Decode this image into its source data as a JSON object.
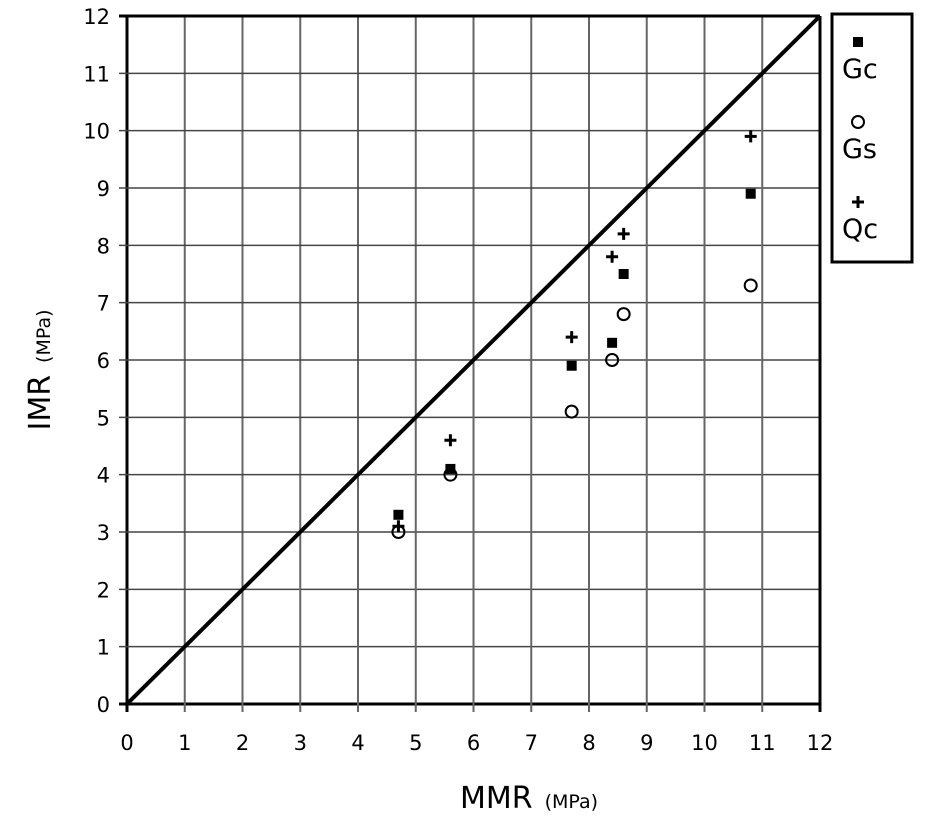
{
  "chart_data": {
    "type": "scatter",
    "xlabel": "MMR",
    "xlabel_unit": "(MPa)",
    "ylabel": "IMR",
    "ylabel_unit": "(MPa)",
    "xlim": [
      0,
      12
    ],
    "ylim": [
      0,
      12
    ],
    "xticks": [
      "0",
      "1",
      "2",
      "3",
      "4",
      "5",
      "6",
      "7",
      "8",
      "9",
      "10",
      "11",
      "12"
    ],
    "yticks": [
      "0",
      "1",
      "2",
      "3",
      "4",
      "5",
      "6",
      "7",
      "8",
      "9",
      "10",
      "11",
      "12"
    ],
    "grid": true,
    "legend_position": "right",
    "reference_line": "y = x",
    "series": [
      {
        "name": "Gc",
        "marker": "filled-square",
        "points": [
          [
            4.7,
            3.3
          ],
          [
            5.6,
            4.1
          ],
          [
            7.7,
            5.9
          ],
          [
            8.4,
            6.3
          ],
          [
            8.6,
            7.5
          ],
          [
            10.8,
            8.9
          ]
        ]
      },
      {
        "name": "Gs",
        "marker": "open-circle",
        "points": [
          [
            4.7,
            3.0
          ],
          [
            5.6,
            4.0
          ],
          [
            7.7,
            5.1
          ],
          [
            8.4,
            6.0
          ],
          [
            8.6,
            6.8
          ],
          [
            10.8,
            7.3
          ]
        ]
      },
      {
        "name": "Qc",
        "marker": "plus",
        "points": [
          [
            4.7,
            3.1
          ],
          [
            5.6,
            4.6
          ],
          [
            7.7,
            6.4
          ],
          [
            8.4,
            7.8
          ],
          [
            8.6,
            8.2
          ],
          [
            10.8,
            9.9
          ]
        ]
      }
    ]
  }
}
